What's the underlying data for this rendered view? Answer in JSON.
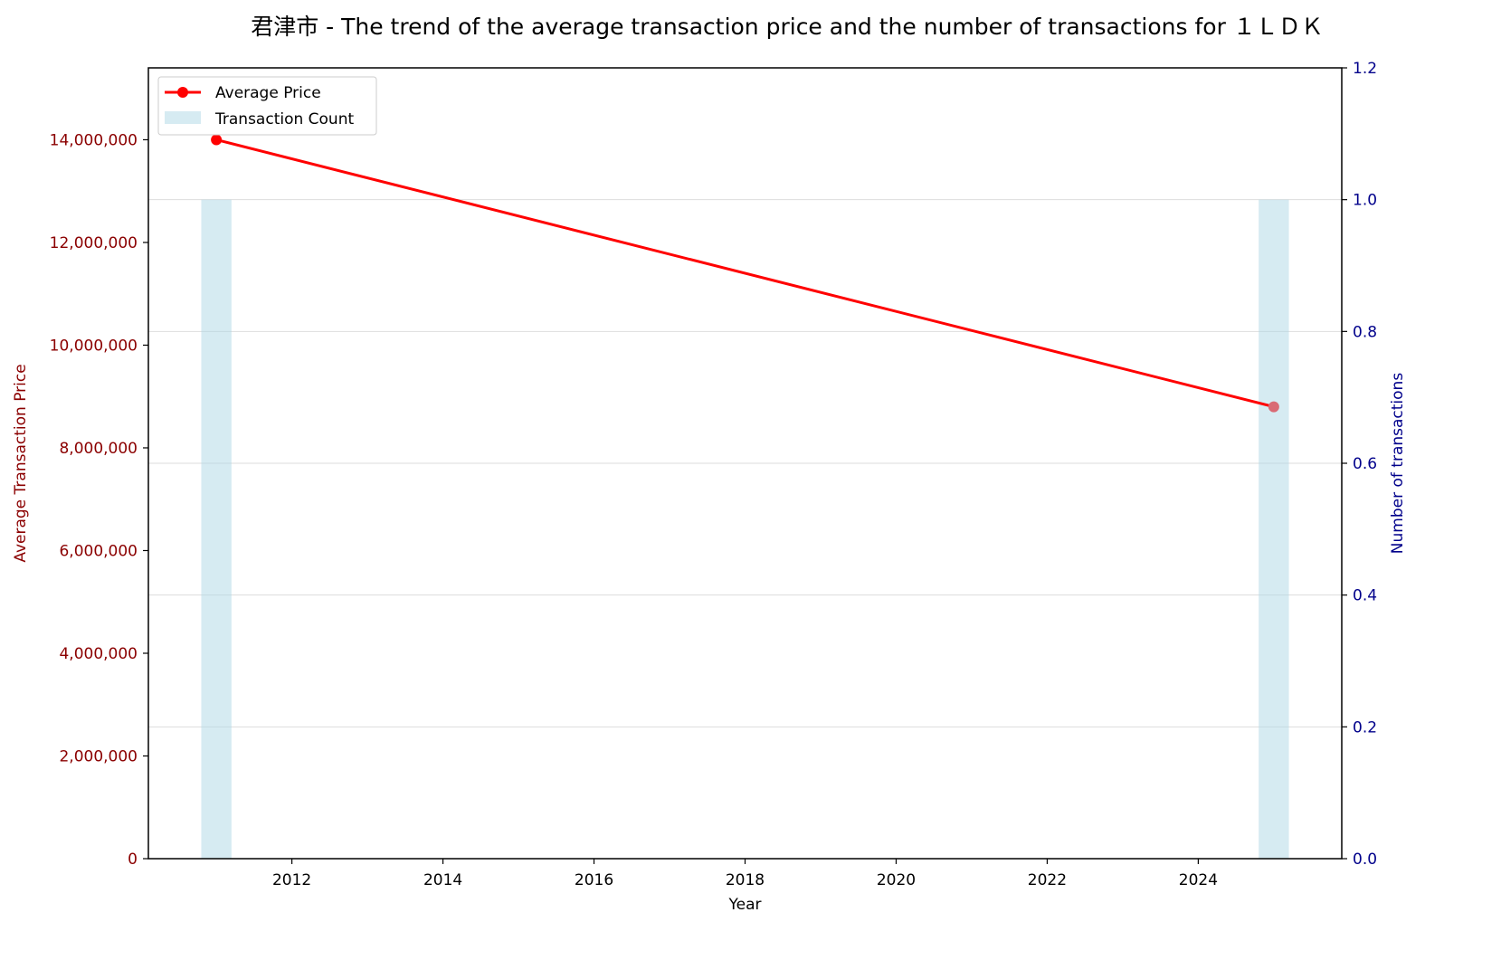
{
  "chart_data": {
    "type": "bar+line",
    "title": "君津市 - The trend of the average transaction price and the number of transactions for １ＬＤＫ",
    "xlabel": "Year",
    "ylabel_left": "Average Transaction Price",
    "ylabel_right": "Number of transactions",
    "xlim": [
      2010.1,
      2025.9
    ],
    "ylim_left": [
      0,
      15400000
    ],
    "ylim_right": [
      0,
      1.2
    ],
    "x_ticks": [
      2012,
      2014,
      2016,
      2018,
      2020,
      2022,
      2024
    ],
    "y_left_ticks": [
      0,
      2000000,
      4000000,
      6000000,
      8000000,
      10000000,
      12000000,
      14000000
    ],
    "y_left_tick_labels": [
      "0",
      "2,000,000",
      "4,000,000",
      "6,000,000",
      "8,000,000",
      "10,000,000",
      "12,000,000",
      "14,000,000"
    ],
    "y_right_ticks": [
      0.0,
      0.2,
      0.4,
      0.6,
      0.8,
      1.0,
      1.2
    ],
    "y_right_tick_labels": [
      "0.0",
      "0.2",
      "0.4",
      "0.6",
      "0.8",
      "1.0",
      "1.2"
    ],
    "grid": "horizontal, right axis",
    "legend_position": "top-left",
    "series": [
      {
        "name": "Average Price",
        "kind": "line",
        "axis": "left",
        "color": "#ff0000",
        "x": [
          2011,
          2025
        ],
        "values": [
          14000000,
          8800000
        ]
      },
      {
        "name": "Transaction Count",
        "kind": "bar",
        "axis": "right",
        "color": "#add8e6",
        "x": [
          2011,
          2025
        ],
        "values": [
          1,
          1
        ]
      }
    ]
  }
}
